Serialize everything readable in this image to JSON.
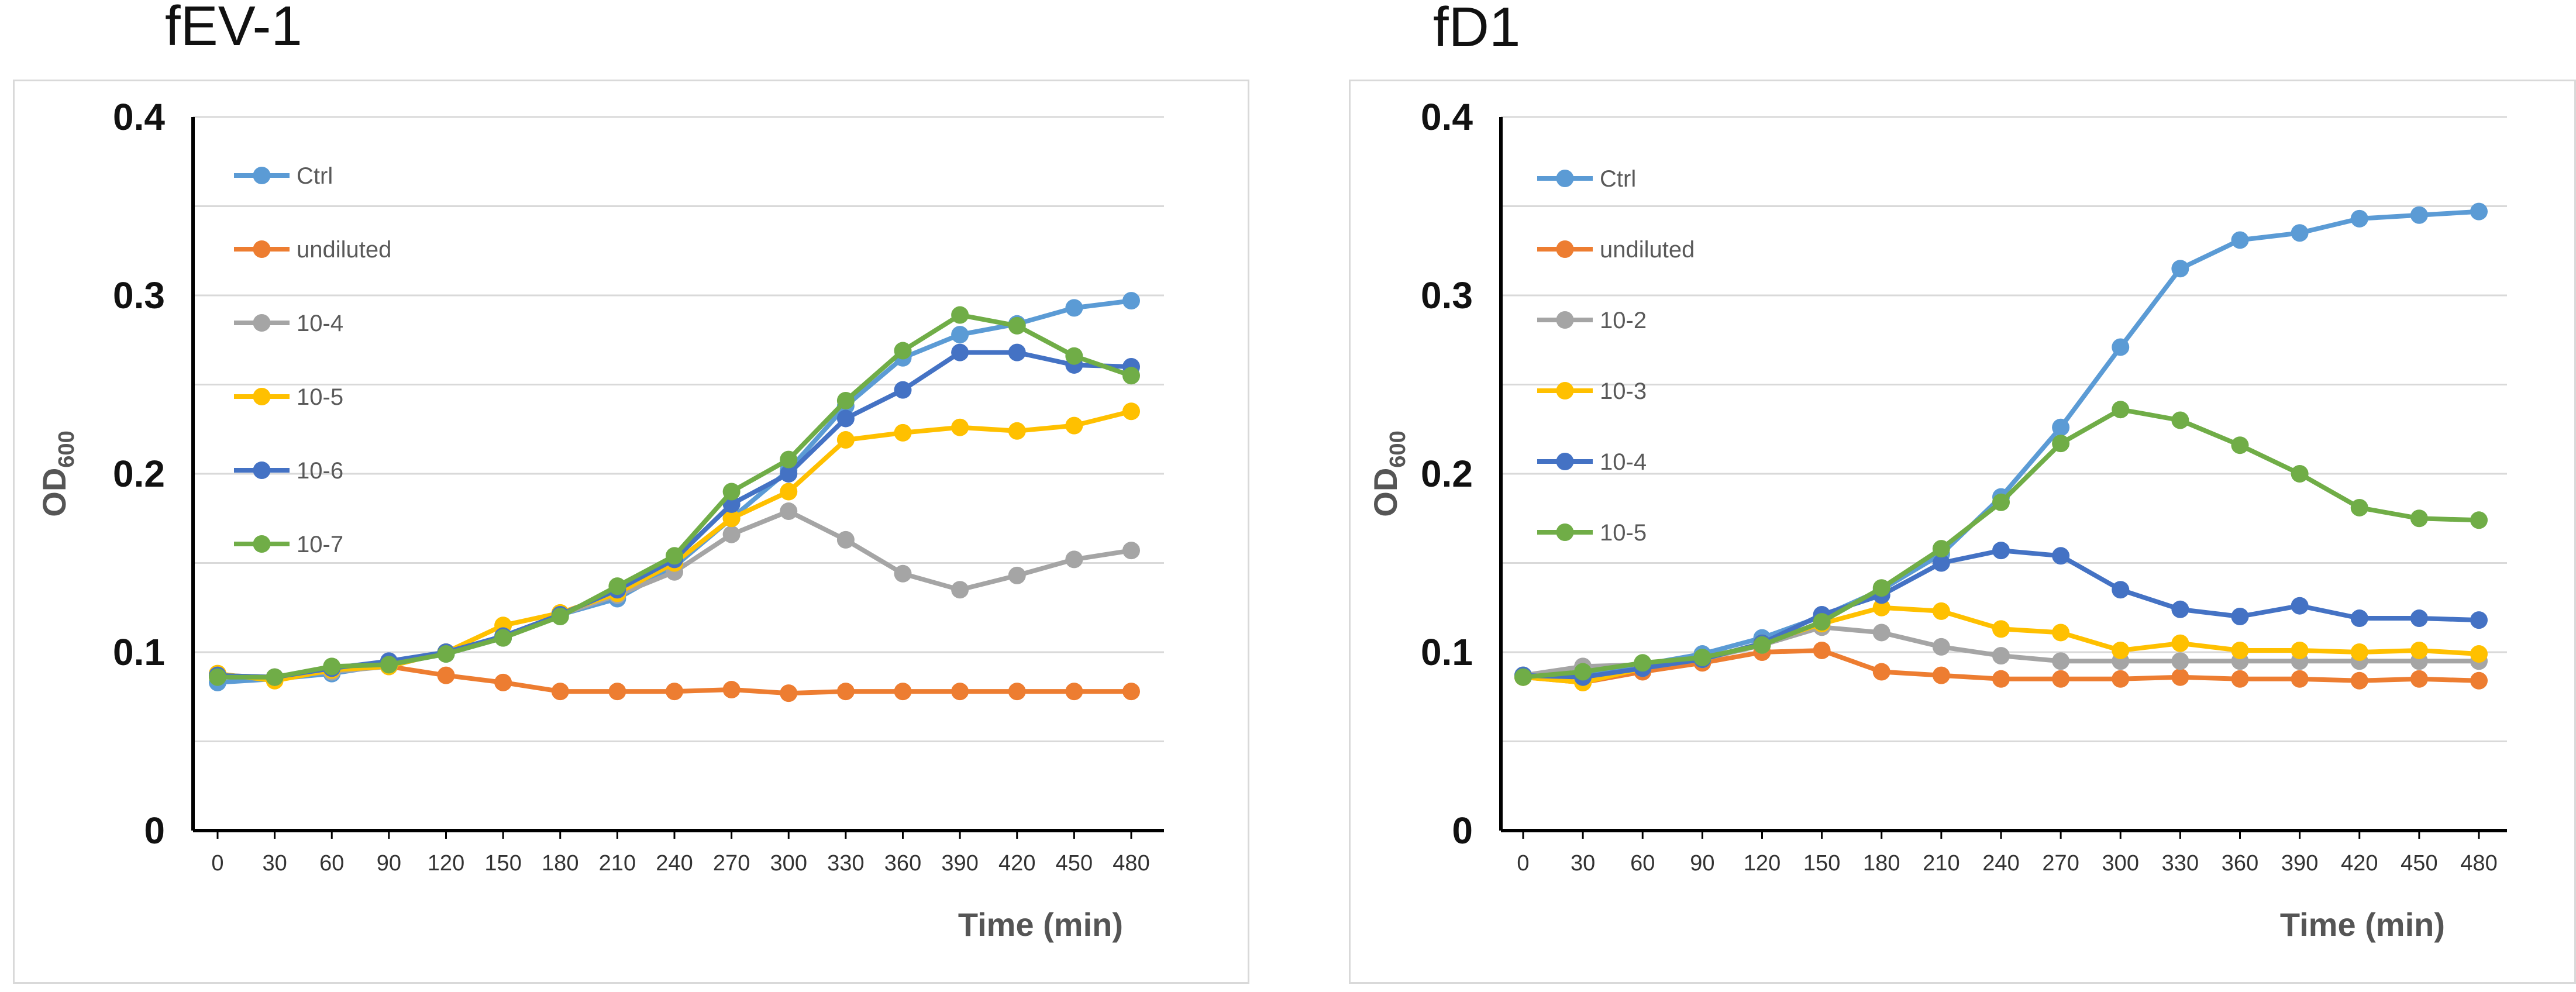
{
  "chart_data": [
    {
      "type": "line",
      "title": "fEV-1",
      "xlabel": "Time (min)",
      "ylabel": "OD",
      "ylabel_sub": "600",
      "ylim": [
        0,
        0.4
      ],
      "yticks": [
        "0",
        "0.1",
        "0.2",
        "0.3",
        "0.4"
      ],
      "x": [
        0,
        30,
        60,
        90,
        120,
        150,
        180,
        210,
        240,
        270,
        300,
        330,
        360,
        390,
        420,
        450,
        480
      ],
      "x_labels": [
        "0",
        "30",
        "60",
        "90",
        "120",
        "150",
        "180",
        "210",
        "240",
        "270",
        "300",
        "330",
        "360",
        "390",
        "420",
        "450",
        "480"
      ],
      "grid": true,
      "legend": "top-left",
      "series": [
        {
          "name": "Ctrl",
          "color": "#5B9BD5",
          "values": [
            0.083,
            0.085,
            0.088,
            0.093,
            0.099,
            0.108,
            0.121,
            0.13,
            0.148,
            0.175,
            0.202,
            0.238,
            0.265,
            0.278,
            0.284,
            0.293,
            0.297
          ]
        },
        {
          "name": "undiluted",
          "color": "#ED7D31",
          "values": [
            0.087,
            0.086,
            0.09,
            0.092,
            0.087,
            0.083,
            0.078,
            0.078,
            0.078,
            0.079,
            0.077,
            0.078,
            0.078,
            0.078,
            0.078,
            0.078,
            0.078
          ]
        },
        {
          "name": "10-4",
          "color": "#A5A5A5",
          "values": [
            0.087,
            0.086,
            0.089,
            0.092,
            0.1,
            0.109,
            0.121,
            0.132,
            0.145,
            0.166,
            0.179,
            0.163,
            0.144,
            0.135,
            0.143,
            0.152,
            0.157
          ]
        },
        {
          "name": "10-5",
          "color": "#FFC000",
          "values": [
            0.088,
            0.084,
            0.09,
            0.092,
            0.1,
            0.115,
            0.122,
            0.133,
            0.15,
            0.175,
            0.19,
            0.219,
            0.223,
            0.226,
            0.224,
            0.227,
            0.235
          ]
        },
        {
          "name": "10-6",
          "color": "#4472C4",
          "values": [
            0.087,
            0.086,
            0.091,
            0.095,
            0.1,
            0.109,
            0.121,
            0.135,
            0.152,
            0.183,
            0.2,
            0.231,
            0.247,
            0.268,
            0.268,
            0.261,
            0.26
          ]
        },
        {
          "name": "10-7",
          "color": "#70AD47",
          "values": [
            0.086,
            0.086,
            0.092,
            0.093,
            0.099,
            0.108,
            0.12,
            0.137,
            0.154,
            0.19,
            0.208,
            0.241,
            0.269,
            0.289,
            0.283,
            0.266,
            0.255
          ]
        }
      ]
    },
    {
      "type": "line",
      "title": "fD1",
      "xlabel": "Time (min)",
      "ylabel": "OD",
      "ylabel_sub": "600",
      "ylim": [
        0,
        0.4
      ],
      "yticks": [
        "0",
        "0.1",
        "0.2",
        "0.3",
        "0.4"
      ],
      "x": [
        0,
        30,
        60,
        90,
        120,
        150,
        180,
        210,
        240,
        270,
        300,
        330,
        360,
        390,
        420,
        450,
        480
      ],
      "x_labels": [
        "0",
        "30",
        "60",
        "90",
        "120",
        "150",
        "180",
        "210",
        "240",
        "270",
        "300",
        "330",
        "360",
        "390",
        "420",
        "450",
        "480"
      ],
      "grid": true,
      "legend": "top-left",
      "series": [
        {
          "name": "Ctrl",
          "color": "#5B9BD5",
          "values": [
            0.087,
            0.088,
            0.093,
            0.099,
            0.108,
            0.12,
            0.135,
            0.155,
            0.187,
            0.226,
            0.271,
            0.315,
            0.331,
            0.335,
            0.343,
            0.345,
            0.347
          ]
        },
        {
          "name": "undiluted",
          "color": "#ED7D31",
          "values": [
            0.086,
            0.083,
            0.089,
            0.094,
            0.1,
            0.101,
            0.089,
            0.087,
            0.085,
            0.085,
            0.085,
            0.086,
            0.085,
            0.085,
            0.084,
            0.085,
            0.084
          ]
        },
        {
          "name": "10-2",
          "color": "#A5A5A5",
          "values": [
            0.087,
            0.092,
            0.093,
            0.096,
            0.104,
            0.114,
            0.111,
            0.103,
            0.098,
            0.095,
            0.095,
            0.095,
            0.095,
            0.095,
            0.095,
            0.095,
            0.095
          ]
        },
        {
          "name": "10-3",
          "color": "#FFC000",
          "values": [
            0.086,
            0.083,
            0.091,
            0.096,
            0.105,
            0.116,
            0.125,
            0.123,
            0.113,
            0.111,
            0.101,
            0.105,
            0.101,
            0.101,
            0.1,
            0.101,
            0.099
          ]
        },
        {
          "name": "10-4",
          "color": "#4472C4",
          "values": [
            0.087,
            0.086,
            0.091,
            0.096,
            0.105,
            0.121,
            0.132,
            0.15,
            0.157,
            0.154,
            0.135,
            0.124,
            0.12,
            0.126,
            0.119,
            0.119,
            0.118
          ]
        },
        {
          "name": "10-5",
          "color": "#70AD47",
          "values": [
            0.086,
            0.089,
            0.094,
            0.097,
            0.104,
            0.117,
            0.136,
            0.158,
            0.184,
            0.217,
            0.236,
            0.23,
            0.216,
            0.2,
            0.181,
            0.175,
            0.174
          ]
        }
      ]
    }
  ]
}
